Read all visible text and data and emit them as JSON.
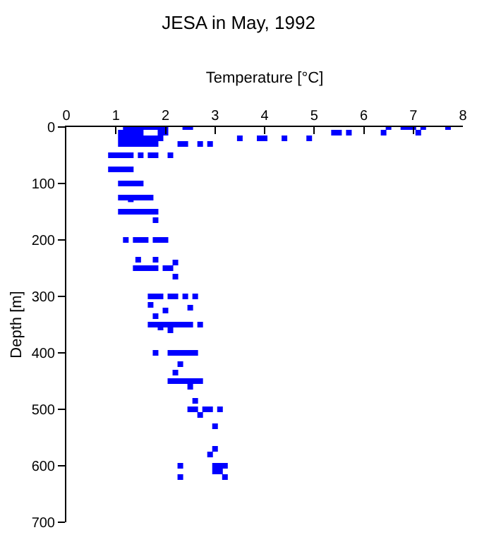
{
  "chart_data": {
    "type": "scatter",
    "title": "JESA in May, 1992",
    "xlabel": "Temperature [°C]",
    "ylabel": "Depth [m]",
    "x": [
      1.2,
      1.3,
      1.4,
      1.5,
      1.6,
      1.7,
      1.8,
      1.9,
      2.0,
      2.4,
      2.5,
      6.5,
      6.8,
      6.9,
      7.0,
      7.2,
      7.7,
      1.1,
      1.2,
      1.3,
      1.4,
      1.5,
      1.9,
      2.0,
      5.4,
      5.5,
      5.7,
      6.4,
      7.1,
      1.1,
      1.2,
      1.3,
      1.4,
      1.5,
      1.6,
      1.7,
      1.8,
      1.9,
      3.5,
      3.9,
      4.0,
      4.4,
      4.9,
      1.1,
      1.2,
      1.3,
      1.4,
      1.5,
      1.6,
      1.7,
      1.8,
      2.3,
      2.4,
      2.7,
      2.9,
      0.9,
      1.0,
      1.1,
      1.2,
      1.3,
      1.5,
      1.7,
      1.8,
      2.1,
      0.9,
      1.0,
      1.1,
      1.2,
      1.3,
      1.1,
      1.2,
      1.3,
      1.4,
      1.5,
      1.1,
      1.2,
      1.3,
      1.4,
      1.5,
      1.6,
      1.7,
      1.3,
      1.1,
      1.2,
      1.3,
      1.4,
      1.5,
      1.6,
      1.7,
      1.8,
      1.8,
      1.2,
      1.4,
      1.5,
      1.6,
      1.8,
      1.9,
      2.0,
      1.45,
      1.8,
      2.2,
      1.4,
      1.5,
      1.6,
      1.7,
      1.8,
      2.0,
      2.1,
      2.2,
      1.7,
      1.8,
      1.9,
      2.1,
      2.2,
      2.4,
      2.6,
      1.7,
      2.5,
      2.0,
      1.8,
      1.7,
      1.8,
      1.9,
      2.0,
      2.1,
      2.2,
      2.3,
      2.4,
      2.5,
      2.7,
      1.9,
      2.1,
      1.8,
      2.1,
      2.2,
      2.3,
      2.4,
      2.5,
      2.6,
      2.3,
      2.2,
      2.1,
      2.2,
      2.3,
      2.4,
      2.5,
      2.6,
      2.7,
      2.5,
      2.6,
      2.5,
      2.6,
      2.8,
      2.9,
      3.1,
      2.7,
      3.0,
      3.0,
      2.9,
      2.3,
      3.0,
      3.1,
      3.2,
      3.0,
      3.1,
      2.3,
      3.2
    ],
    "values": [
      0,
      0,
      0,
      0,
      0,
      0,
      0,
      0,
      0,
      0,
      0,
      0,
      0,
      0,
      0,
      0,
      0,
      10,
      10,
      10,
      10,
      10,
      10,
      10,
      10,
      10,
      10,
      10,
      10,
      20,
      20,
      20,
      20,
      20,
      20,
      20,
      20,
      20,
      20,
      20,
      20,
      20,
      20,
      30,
      30,
      30,
      30,
      30,
      30,
      30,
      30,
      30,
      30,
      30,
      30,
      50,
      50,
      50,
      50,
      50,
      50,
      50,
      50,
      50,
      75,
      75,
      75,
      75,
      75,
      100,
      100,
      100,
      100,
      100,
      125,
      125,
      125,
      125,
      125,
      125,
      125,
      128,
      150,
      150,
      150,
      150,
      150,
      150,
      150,
      150,
      165,
      200,
      200,
      200,
      200,
      200,
      200,
      200,
      235,
      235,
      240,
      250,
      250,
      250,
      250,
      250,
      250,
      250,
      265,
      300,
      300,
      300,
      300,
      300,
      300,
      300,
      315,
      320,
      325,
      335,
      350,
      350,
      350,
      350,
      350,
      350,
      350,
      350,
      350,
      350,
      355,
      360,
      400,
      400,
      400,
      400,
      400,
      400,
      400,
      420,
      435,
      450,
      450,
      450,
      450,
      450,
      450,
      450,
      460,
      485,
      500,
      500,
      500,
      500,
      500,
      510,
      530,
      570,
      580,
      600,
      600,
      600,
      600,
      610,
      610,
      620,
      620
    ],
    "color": "#0000ff",
    "marker": "square",
    "xlim": [
      0,
      8
    ],
    "xticks": [
      0,
      1,
      2,
      3,
      4,
      5,
      6,
      7,
      8
    ],
    "ylim": [
      700,
      0
    ],
    "yticks": [
      0,
      100,
      200,
      300,
      400,
      500,
      600,
      700
    ]
  }
}
